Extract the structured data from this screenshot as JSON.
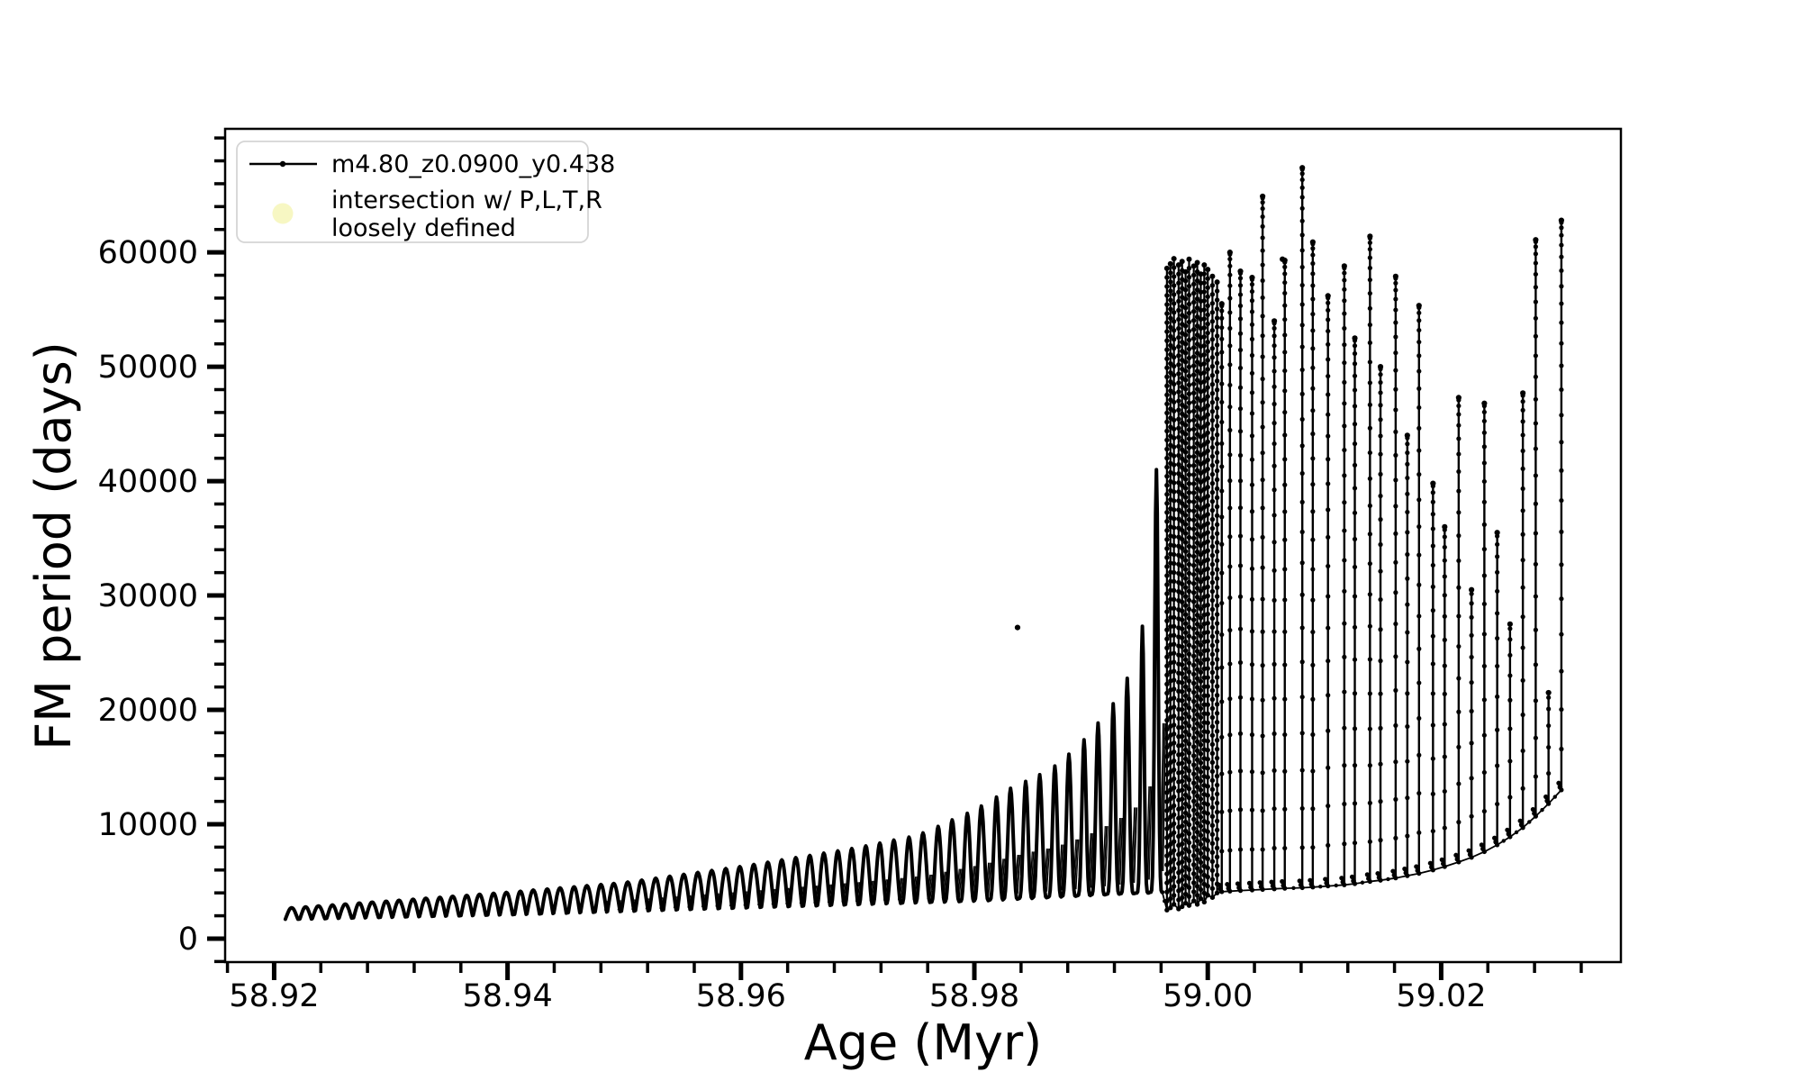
{
  "figure": {
    "background": "#ffffff",
    "line_color": "#000000",
    "frame_color": "#000000"
  },
  "legend": {
    "series1_label": "m4.80_z0.0900_y0.438",
    "series2_label_line1": "intersection w/ P,L,T,R",
    "series2_label_line2": "loosely defined",
    "series2_marker_color": "#f6f6bd",
    "box_border_color": "#d5d5d5"
  },
  "chart_data": {
    "type": "line",
    "title": "",
    "xlabel": "Age (Myr)",
    "ylabel": "FM period (days)",
    "series_name": "m4.80_z0.0900_y0.438",
    "legend_position": "upper left",
    "grid": false,
    "x_axis": {
      "range": [
        58.9158,
        59.0354
      ],
      "major_ticks": [
        58.92,
        58.94,
        58.96,
        58.98,
        59.0,
        59.02
      ],
      "tick_labels": [
        "58.92",
        "58.94",
        "58.96",
        "58.98",
        "59.00",
        "59.02"
      ],
      "minor_step": 0.004,
      "minor_start": 58.916
    },
    "y_axis": {
      "range": [
        -2050,
        70800
      ],
      "major_ticks": [
        0,
        10000,
        20000,
        30000,
        40000,
        50000,
        60000
      ],
      "tick_labels": [
        "0",
        "10000",
        "20000",
        "30000",
        "40000",
        "50000",
        "60000"
      ],
      "minor_step": 2000,
      "minor_start": -2000
    },
    "pulses_note": "oscillatory thermal-pulse train: [age_Myr, base_period_days, peak_period_days]",
    "pulses": [
      [
        58.9215,
        1700,
        2700
      ],
      [
        58.9227,
        1725,
        2780
      ],
      [
        58.9238,
        1750,
        2860
      ],
      [
        58.925,
        1775,
        2940
      ],
      [
        58.9261,
        1800,
        3020
      ],
      [
        58.9273,
        1825,
        3110
      ],
      [
        58.9284,
        1850,
        3190
      ],
      [
        58.9296,
        1875,
        3270
      ],
      [
        58.9307,
        1900,
        3350
      ],
      [
        58.9319,
        1925,
        3440
      ],
      [
        58.933,
        1950,
        3530
      ],
      [
        58.9342,
        1975,
        3610
      ],
      [
        58.9353,
        2000,
        3700
      ],
      [
        58.9365,
        2025,
        3780
      ],
      [
        58.9376,
        2050,
        3870
      ],
      [
        58.9388,
        2075,
        3960
      ],
      [
        58.9399,
        2100,
        4040
      ],
      [
        58.9411,
        2130,
        4140
      ],
      [
        58.9422,
        2165,
        4240
      ],
      [
        58.9434,
        2200,
        4340
      ],
      [
        58.9445,
        2235,
        4430
      ],
      [
        58.9457,
        2270,
        4530
      ],
      [
        58.9468,
        2305,
        4630
      ],
      [
        58.948,
        2340,
        4730
      ],
      [
        58.9491,
        2375,
        4820
      ],
      [
        58.9503,
        2410,
        4940
      ],
      [
        58.9515,
        2445,
        5110
      ],
      [
        58.9527,
        2480,
        5280
      ],
      [
        58.9539,
        2520,
        5450
      ],
      [
        58.9551,
        2555,
        5610
      ],
      [
        58.9563,
        2590,
        5780
      ],
      [
        58.9575,
        2625,
        5950
      ],
      [
        58.9587,
        2660,
        6120
      ],
      [
        58.9599,
        2695,
        6290
      ],
      [
        58.9611,
        2735,
        6480
      ],
      [
        58.9623,
        2770,
        6680
      ],
      [
        58.9635,
        2805,
        6880
      ],
      [
        58.9647,
        2840,
        7080
      ],
      [
        58.9659,
        2875,
        7270
      ],
      [
        58.9671,
        2915,
        7470
      ],
      [
        58.9683,
        2950,
        7670
      ],
      [
        58.9695,
        2985,
        7870
      ],
      [
        58.9707,
        3020,
        8100
      ],
      [
        58.9719,
        3060,
        8350
      ],
      [
        58.9731,
        3095,
        8610
      ],
      [
        58.9744,
        3130,
        8870
      ],
      [
        58.9756,
        3170,
        9240
      ],
      [
        58.9769,
        3205,
        9810
      ],
      [
        58.9781,
        3240,
        10380
      ],
      [
        58.9794,
        3280,
        10950
      ],
      [
        58.9806,
        3330,
        11590
      ],
      [
        58.9819,
        3395,
        12370
      ],
      [
        58.9831,
        3455,
        13140
      ],
      [
        58.9844,
        3520,
        13740
      ],
      [
        58.9856,
        3580,
        14330
      ],
      [
        58.9869,
        3645,
        15090
      ],
      [
        58.9881,
        3705,
        16130
      ],
      [
        58.9894,
        3770,
        17390
      ],
      [
        58.9906,
        3830,
        18850
      ],
      [
        58.9919,
        3895,
        20530
      ],
      [
        58.9931,
        3940,
        22760
      ],
      [
        58.9944,
        3990,
        27300
      ],
      [
        58.9956,
        4060,
        41000
      ]
    ],
    "cluster_spikes_note": "dense post-pulse spike cluster: [age_Myr, base, top]",
    "cluster_spikes": [
      [
        58.9965,
        2500,
        58600
      ],
      [
        58.9968,
        2700,
        59000
      ],
      [
        58.9971,
        3000,
        59450
      ],
      [
        58.9975,
        2600,
        58900
      ],
      [
        58.9978,
        2800,
        59200
      ],
      [
        58.9981,
        3100,
        58300
      ],
      [
        58.9984,
        2900,
        59400
      ],
      [
        58.9988,
        3300,
        58800
      ],
      [
        58.9991,
        3000,
        59100
      ],
      [
        58.9994,
        3500,
        58100
      ],
      [
        58.9997,
        3200,
        58900
      ],
      [
        59.0,
        3800,
        58500
      ],
      [
        59.0004,
        3600,
        57900
      ],
      [
        59.0008,
        4000,
        57400
      ]
    ],
    "spikes_note": "isolated late spikes: [age_Myr, base, top]",
    "spikes": [
      [
        59.0012,
        4100,
        55500
      ],
      [
        59.0019,
        4150,
        60000
      ],
      [
        59.0028,
        4200,
        58350
      ],
      [
        59.0038,
        4250,
        57800
      ],
      [
        59.0047,
        4300,
        64900
      ],
      [
        59.0057,
        4350,
        54000
      ],
      [
        59.0066,
        4400,
        59300
      ],
      [
        59.0081,
        4450,
        67400
      ],
      [
        59.009,
        4500,
        60900
      ],
      [
        59.0103,
        4600,
        56200
      ],
      [
        59.0117,
        4700,
        58800
      ],
      [
        59.0126,
        4800,
        52500
      ],
      [
        59.0139,
        5000,
        61400
      ],
      [
        59.0148,
        5100,
        50000
      ],
      [
        59.0161,
        5300,
        57900
      ],
      [
        59.0171,
        5500,
        44000
      ],
      [
        59.0181,
        5700,
        55350
      ],
      [
        59.0193,
        6000,
        39800
      ],
      [
        59.0203,
        6300,
        36000
      ],
      [
        59.0215,
        6700,
        47300
      ],
      [
        59.0226,
        7100,
        30500
      ],
      [
        59.0237,
        7600,
        46800
      ],
      [
        59.0248,
        8200,
        35500
      ],
      [
        59.0259,
        8900,
        27500
      ],
      [
        59.027,
        9700,
        47700
      ],
      [
        59.0281,
        10700,
        61100
      ],
      [
        59.0292,
        11800,
        21500
      ],
      [
        59.0303,
        13000,
        62800
      ]
    ],
    "lone_points": [
      [
        58.9837,
        27200
      ],
      [
        59.0064,
        59400
      ]
    ]
  }
}
